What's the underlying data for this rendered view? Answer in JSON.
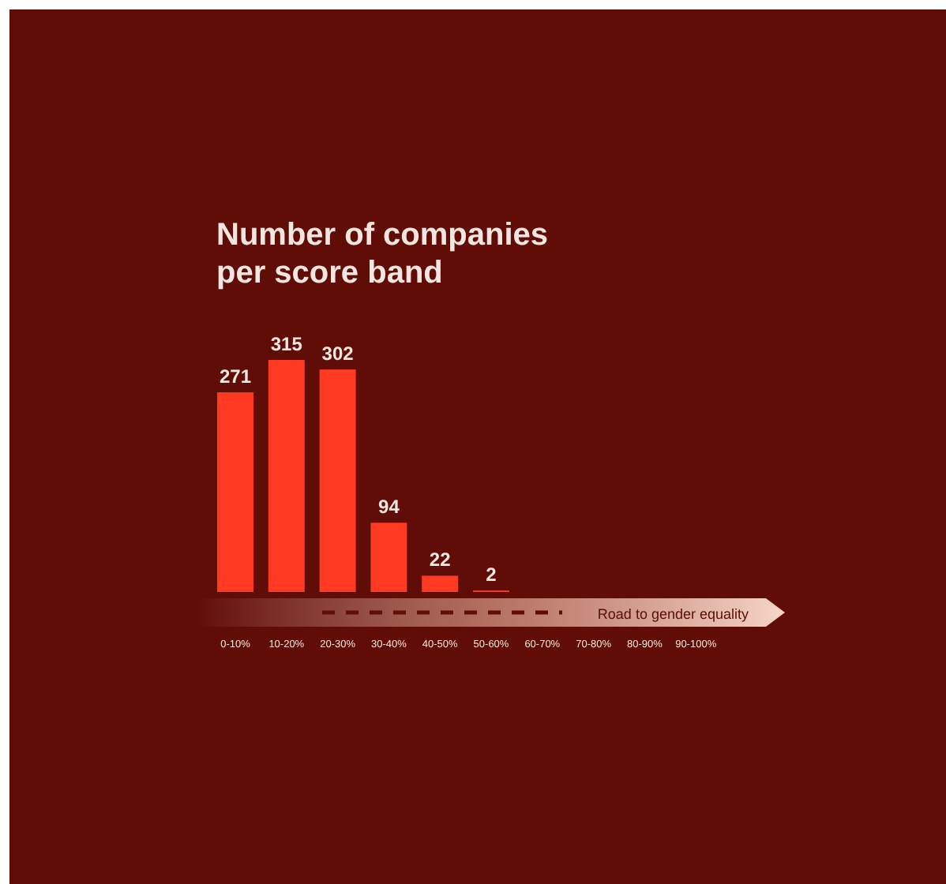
{
  "chart_data": {
    "type": "bar",
    "title": "Number of companies\nper score band",
    "categories": [
      "0-10%",
      "10-20%",
      "20-30%",
      "30-40%",
      "40-50%",
      "50-60%",
      "60-70%",
      "70-80%",
      "80-90%",
      "90-100%"
    ],
    "values": [
      271,
      315,
      302,
      94,
      22,
      2,
      null,
      null,
      null,
      null
    ],
    "color": "#ff3a22",
    "data_labels": true,
    "annotations": [
      "Road to gender equality"
    ]
  }
}
